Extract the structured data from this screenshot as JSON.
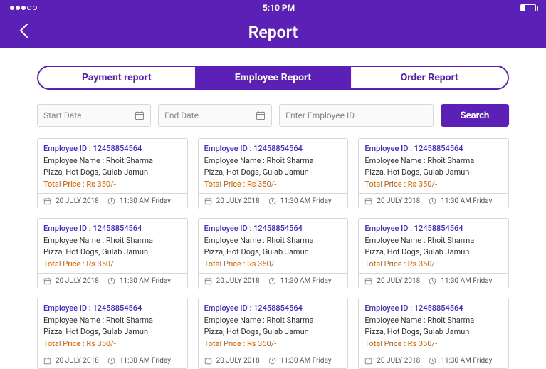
{
  "status": {
    "time": "5:10 PM"
  },
  "title": "Report",
  "tabs": [
    {
      "label": "Payment report",
      "active": false
    },
    {
      "label": "Employee Report",
      "active": true
    },
    {
      "label": "Order Report",
      "active": false
    }
  ],
  "filters": {
    "start_placeholder": "Start Date",
    "end_placeholder": "End Date",
    "employee_placeholder": "Enter Employee ID",
    "search_label": "Search"
  },
  "card_labels": {
    "emp_id_prefix": "Employee ID : ",
    "emp_name_prefix": "Employee Name : ",
    "total_prefix": "Total Price : "
  },
  "cards": [
    {
      "emp_id": "12458854564",
      "emp_name": "Rhoit Sharma",
      "items": "Pizza, Hot Dogs, Gulab Jamun",
      "total": "Rs 350/-",
      "date": "20 JULY 2018",
      "time": "11:30 AM Friday"
    },
    {
      "emp_id": "12458854564",
      "emp_name": "Rhoit Sharma",
      "items": "Pizza, Hot Dogs, Gulab Jamun",
      "total": "Rs 350/-",
      "date": "20 JULY 2018",
      "time": "11:30 AM Friday"
    },
    {
      "emp_id": "12458854564",
      "emp_name": "Rhoit Sharma",
      "items": "Pizza, Hot Dogs, Gulab Jamun",
      "total": "Rs 350/-",
      "date": "20 JULY 2018",
      "time": "11:30 AM Friday"
    },
    {
      "emp_id": "12458854564",
      "emp_name": "Rhoit Sharma",
      "items": "Pizza, Hot Dogs, Gulab Jamun",
      "total": "Rs 350/-",
      "date": "20 JULY 2018",
      "time": "11:30 AM Friday"
    },
    {
      "emp_id": "12458854564",
      "emp_name": "Rhoit Sharma",
      "items": "Pizza, Hot Dogs, Gulab Jamun",
      "total": "Rs 350/-",
      "date": "20 JULY 2018",
      "time": "11:30 AM Friday"
    },
    {
      "emp_id": "12458854564",
      "emp_name": "Rhoit Sharma",
      "items": "Pizza, Hot Dogs, Gulab Jamun",
      "total": "Rs 350/-",
      "date": "20 JULY 2018",
      "time": "11:30 AM Friday"
    },
    {
      "emp_id": "12458854564",
      "emp_name": "Rhoit Sharma",
      "items": "Pizza, Hot Dogs, Gulab Jamun",
      "total": "Rs 350/-",
      "date": "20 JULY 2018",
      "time": "11:30 AM Friday"
    },
    {
      "emp_id": "12458854564",
      "emp_name": "Rhoit Sharma",
      "items": "Pizza, Hot Dogs, Gulab Jamun",
      "total": "Rs 350/-",
      "date": "20 JULY 2018",
      "time": "11:30 AM Friday"
    },
    {
      "emp_id": "12458854564",
      "emp_name": "Rhoit Sharma",
      "items": "Pizza, Hot Dogs, Gulab Jamun",
      "total": "Rs 350/-",
      "date": "20 JULY 2018",
      "time": "11:30 AM Friday"
    }
  ],
  "colors": {
    "brand": "#5b21b6",
    "emp_id_color": "#3b2bd9",
    "total_color": "#e05a00",
    "border": "#d8d8d8"
  }
}
